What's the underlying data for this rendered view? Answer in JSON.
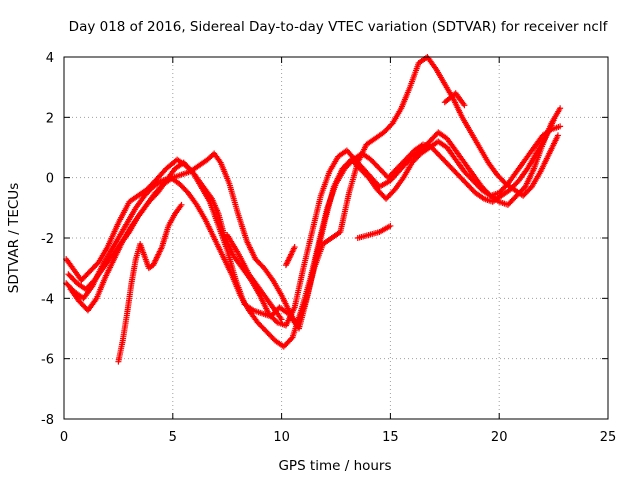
{
  "chart_data": {
    "type": "scatter",
    "title": "Day 018 of 2016, Sidereal Day-to-day VTEC variation (SDTVAR) for receiver nclf",
    "xlabel": "GPS time / hours",
    "ylabel": "SDTVAR / TECUs",
    "xlim": [
      0,
      25
    ],
    "ylim": [
      -8,
      4
    ],
    "xticks": [
      0,
      5,
      10,
      15,
      20,
      25
    ],
    "yticks": [
      -8,
      -6,
      -4,
      -2,
      0,
      2,
      4
    ],
    "xtick_labels": [
      "0",
      "5",
      "10",
      "15",
      "20",
      "25"
    ],
    "ytick_labels": [
      "-8",
      "-6",
      "-4",
      "-2",
      "0",
      "2",
      "4"
    ],
    "grid": true,
    "grid_style": "dotted",
    "marker": "plus",
    "series_color": "#ff0000",
    "series": [
      {
        "x": [
          0.1,
          0.4,
          0.8,
          1.2,
          1.6,
          2.0,
          2.5,
          3.0,
          3.4,
          3.8,
          4.2,
          4.7,
          5.2,
          5.6,
          6.0,
          6.4,
          6.8,
          7.1,
          7.4,
          7.8,
          8.2,
          8.6,
          9.0,
          9.4,
          9.8,
          10.2,
          10.6,
          11.0,
          11.4,
          11.8,
          12.2,
          12.6,
          13.0,
          13.5,
          14.0,
          14.5,
          15.0,
          15.5,
          16.0,
          16.4,
          16.8,
          17.2,
          17.6,
          18.0,
          18.4,
          18.8,
          19.2,
          19.6,
          20.0,
          20.4,
          20.8,
          21.2,
          21.6,
          22.0,
          22.4,
          22.8
        ],
        "values": [
          -2.7,
          -3.0,
          -3.4,
          -3.1,
          -2.8,
          -2.3,
          -1.5,
          -0.8,
          -0.6,
          -0.4,
          -0.1,
          0.3,
          0.6,
          0.4,
          0.1,
          -0.3,
          -0.7,
          -1.2,
          -2.0,
          -2.6,
          -3.0,
          -3.4,
          -3.9,
          -4.5,
          -4.8,
          -4.9,
          -4.3,
          -3.0,
          -1.8,
          -0.6,
          0.2,
          0.7,
          0.9,
          0.5,
          0.1,
          -0.3,
          -0.1,
          0.3,
          0.7,
          0.9,
          1.2,
          1.5,
          1.3,
          0.9,
          0.5,
          0.1,
          -0.3,
          -0.6,
          -0.8,
          -0.9,
          -0.6,
          -0.3,
          0.3,
          1.1,
          1.8,
          2.3
        ]
      },
      {
        "x": [
          0.2,
          0.6,
          1.0,
          1.4,
          1.8,
          2.2,
          2.6,
          3.0,
          3.4,
          3.8,
          4.2,
          4.6,
          5.0,
          5.4,
          5.8,
          6.2,
          6.6,
          6.9,
          7.2,
          7.6,
          8.0,
          8.4,
          8.8,
          9.2,
          9.6,
          10.0,
          10.4,
          10.8,
          11.2,
          11.6,
          12.0,
          12.4,
          12.8,
          13.2,
          13.6,
          14.0,
          14.4,
          14.8,
          15.2,
          15.6,
          16.0,
          16.4,
          16.8,
          17.2,
          17.6,
          18.0,
          18.4,
          18.8,
          19.2,
          19.6,
          20.0,
          20.4,
          20.8,
          21.2,
          21.6,
          22.0,
          22.4,
          22.8
        ],
        "values": [
          -3.2,
          -3.5,
          -3.7,
          -3.4,
          -3.0,
          -2.6,
          -2.2,
          -1.8,
          -1.3,
          -0.9,
          -0.5,
          -0.2,
          0.0,
          0.1,
          0.2,
          0.4,
          0.6,
          0.8,
          0.5,
          -0.2,
          -1.2,
          -2.1,
          -2.7,
          -3.0,
          -3.4,
          -3.9,
          -4.5,
          -5.0,
          -3.9,
          -2.6,
          -1.4,
          -0.3,
          0.3,
          0.6,
          0.3,
          0.0,
          -0.4,
          -0.7,
          -0.4,
          0.0,
          0.5,
          0.8,
          1.0,
          1.2,
          1.0,
          0.6,
          0.2,
          -0.1,
          -0.4,
          -0.6,
          -0.5,
          -0.2,
          0.2,
          0.6,
          1.0,
          1.4,
          1.6,
          1.7
        ]
      },
      {
        "x": [
          0.1,
          0.5,
          0.9,
          1.3,
          1.7,
          2.1,
          2.5,
          2.9,
          3.3,
          3.7,
          4.1,
          4.5,
          4.9,
          5.3,
          5.7,
          6.1,
          6.5,
          6.9,
          7.3,
          7.7,
          8.1,
          8.5,
          8.9,
          9.3,
          9.7,
          10.1,
          10.5,
          10.9,
          11.3,
          11.7,
          12.1,
          12.5,
          12.9,
          13.3,
          13.7,
          14.1,
          14.5,
          14.9,
          15.3,
          15.7,
          16.1,
          16.5,
          16.9,
          17.3,
          17.7,
          18.1,
          18.5,
          18.9,
          19.3,
          19.7,
          20.1,
          20.5,
          20.9,
          21.3,
          21.7,
          22.1,
          22.5
        ],
        "values": [
          -3.5,
          -3.8,
          -4.0,
          -3.6,
          -3.0,
          -2.5,
          -2.0,
          -1.5,
          -1.0,
          -0.6,
          -0.3,
          -0.1,
          0.0,
          -0.2,
          -0.5,
          -0.9,
          -1.4,
          -2.0,
          -2.6,
          -3.2,
          -3.9,
          -4.4,
          -4.8,
          -5.1,
          -5.4,
          -5.6,
          -5.3,
          -4.4,
          -3.4,
          -2.2,
          -1.0,
          -0.2,
          0.3,
          0.6,
          0.8,
          0.6,
          0.3,
          0.0,
          0.3,
          0.6,
          0.9,
          1.1,
          1.0,
          0.7,
          0.4,
          0.1,
          -0.2,
          -0.5,
          -0.7,
          -0.8,
          -0.6,
          -0.4,
          -0.1,
          0.3,
          0.8,
          1.3,
          1.9
        ]
      },
      {
        "x": [
          0.3,
          0.7,
          1.1,
          1.5,
          1.9,
          2.3,
          2.7,
          3.1,
          3.5,
          3.9,
          4.3,
          4.7,
          5.1,
          5.5,
          5.9,
          6.3,
          6.7,
          7.1,
          7.5,
          7.9,
          8.3,
          8.7,
          9.1,
          9.5,
          9.9,
          10.3,
          10.7,
          11.1,
          11.5,
          11.9,
          12.3,
          12.7,
          13.1,
          13.5,
          13.9,
          14.3,
          14.7,
          15.1,
          15.5,
          15.9,
          16.3,
          16.7,
          17.1,
          17.5,
          17.9,
          18.3,
          18.7,
          19.1,
          19.5,
          19.9,
          20.3,
          20.7,
          21.1,
          21.5,
          21.9,
          22.3,
          22.7
        ],
        "values": [
          -3.7,
          -4.1,
          -4.4,
          -4.0,
          -3.3,
          -2.7,
          -2.1,
          -1.6,
          -1.2,
          -0.8,
          -0.5,
          -0.1,
          0.3,
          0.5,
          0.2,
          -0.3,
          -0.8,
          -1.6,
          -2.4,
          -3.4,
          -4.2,
          -4.4,
          -4.5,
          -4.6,
          -4.3,
          -4.5,
          -4.9,
          -4.1,
          -3.0,
          -2.2,
          -2.0,
          -1.8,
          -0.5,
          0.5,
          1.1,
          1.3,
          1.5,
          1.8,
          2.3,
          3.0,
          3.8,
          4.0,
          3.6,
          3.1,
          2.6,
          2.0,
          1.5,
          1.0,
          0.5,
          0.1,
          -0.2,
          -0.4,
          -0.6,
          -0.3,
          0.2,
          0.8,
          1.4
        ]
      },
      {
        "x": [
          2.5,
          2.7,
          2.9,
          3.1,
          3.3,
          3.5,
          3.7,
          3.9,
          4.1,
          4.3,
          4.5,
          4.8,
          5.1,
          5.4
        ],
        "values": [
          -6.1,
          -5.4,
          -4.5,
          -3.5,
          -2.7,
          -2.2,
          -2.6,
          -3.0,
          -2.9,
          -2.6,
          -2.3,
          -1.6,
          -1.2,
          -0.9
        ]
      },
      {
        "x": [
          7.5,
          8.0,
          8.5,
          9.0,
          9.5,
          10.0
        ],
        "values": [
          -1.9,
          -2.5,
          -3.2,
          -3.7,
          -4.2,
          -4.7
        ]
      },
      {
        "x": [
          10.2,
          10.4,
          10.6
        ],
        "values": [
          -2.9,
          -2.6,
          -2.3
        ]
      },
      {
        "x": [
          13.5,
          14.0,
          14.5,
          15.0
        ],
        "values": [
          -2.0,
          -1.9,
          -1.8,
          -1.6
        ]
      },
      {
        "x": [
          17.5,
          18.0,
          18.4
        ],
        "values": [
          2.5,
          2.8,
          2.4
        ]
      }
    ]
  }
}
